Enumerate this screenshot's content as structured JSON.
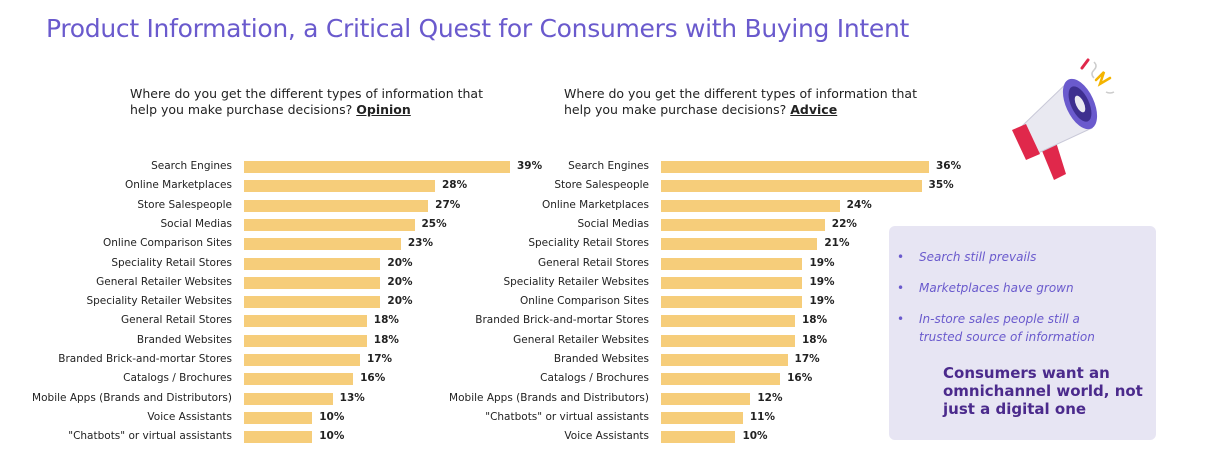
{
  "title": "Product Information, a Critical Quest for Consumers with Buying Intent",
  "chart_data": [
    {
      "type": "bar",
      "orientation": "horizontal",
      "title_prefix": "Where do you get the different types of information that help you make purchase decisions?",
      "title_emphasis": "Opinion",
      "categories": [
        "Search Engines",
        "Online Marketplaces",
        "Store Salespeople",
        "Social Medias",
        "Online Comparison Sites",
        "Speciality Retail Stores",
        "General Retailer Websites",
        "Speciality Retailer Websites",
        "General Retail Stores",
        "Branded Websites",
        "Branded Brick-and-mortar Stores",
        "Catalogs / Brochures",
        "Mobile Apps (Brands and Distributors)",
        "Voice Assistants",
        "\"Chatbots\" or virtual assistants"
      ],
      "values": [
        39,
        28,
        27,
        25,
        23,
        20,
        20,
        20,
        18,
        18,
        17,
        16,
        13,
        10,
        10
      ],
      "value_labels": [
        "39%",
        "28%",
        "27%",
        "25%",
        "23%",
        "20%",
        "20%",
        "20%",
        "18%",
        "18%",
        "17%",
        "16%",
        "13%",
        "10%",
        "10%"
      ],
      "unit": "%",
      "xlim": [
        0,
        39
      ],
      "grid": false,
      "bar_color": "#f6cd7a"
    },
    {
      "type": "bar",
      "orientation": "horizontal",
      "title_prefix": "Where do you get the different types of information that help you make purchase decisions?",
      "title_emphasis": "Advice",
      "categories": [
        "Search Engines",
        "Store Salespeople",
        "Online Marketplaces",
        "Social Medias",
        "Speciality Retail Stores",
        "General Retail Stores",
        "Speciality Retailer Websites",
        "Online Comparison Sites",
        "Branded Brick-and-mortar Stores",
        "General Retailer Websites",
        "Branded Websites",
        "Catalogs / Brochures",
        "Mobile Apps (Brands and Distributors)",
        "\"Chatbots\" or virtual assistants",
        "Voice Assistants"
      ],
      "values": [
        36,
        35,
        24,
        22,
        21,
        19,
        19,
        19,
        18,
        18,
        17,
        16,
        12,
        11,
        10
      ],
      "value_labels": [
        "36%",
        "35%",
        "24%",
        "22%",
        "21%",
        "19%",
        "19%",
        "19%",
        "18%",
        "18%",
        "17%",
        "16%",
        "12%",
        "11%",
        "10%"
      ],
      "unit": "%",
      "xlim": [
        0,
        36
      ],
      "grid": false,
      "bar_color": "#f6cd7a"
    }
  ],
  "side_panel": {
    "bullets": [
      "Search still prevails",
      "Marketplaces have grown",
      "In-store sales people still a trusted source of information"
    ],
    "conclusion": "Consumers want an omnichannel world, not just a digital one"
  },
  "colors": {
    "title": "#6a5acd",
    "bar": "#f6cd7a",
    "panel_bg": "#e7e5f3",
    "conclusion": "#4b2a8c",
    "megaphone_red": "#e0284b"
  },
  "icons": [
    "megaphone-icon"
  ]
}
